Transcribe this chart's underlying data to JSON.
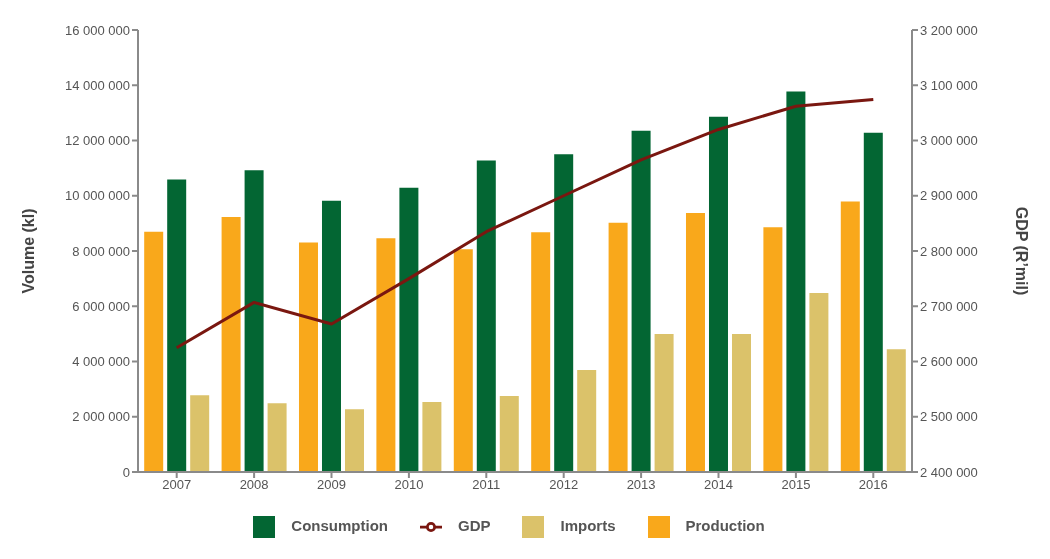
{
  "chart_data": {
    "type": "bar",
    "categories": [
      "2007",
      "2008",
      "2009",
      "2010",
      "2011",
      "2012",
      "2013",
      "2014",
      "2015",
      "2016"
    ],
    "ylabel": "Volume (kl)",
    "y2label": "GDP (R’mil)",
    "ylim": [
      0,
      16000000
    ],
    "yticks": [
      0,
      2000000,
      4000000,
      6000000,
      8000000,
      10000000,
      12000000,
      14000000,
      16000000
    ],
    "y2lim": [
      2400000,
      3200000
    ],
    "y2ticks": [
      2400000,
      2500000,
      2600000,
      2700000,
      2800000,
      2900000,
      3000000,
      3100000,
      3200000
    ],
    "legend": "bottom",
    "series": [
      {
        "name": "Production",
        "color": "#f9a81b",
        "values": [
          8700000,
          9230000,
          8310000,
          8460000,
          8060000,
          8680000,
          9020000,
          9380000,
          8860000,
          9790000
        ]
      },
      {
        "name": "Consumption",
        "color": "#036633",
        "values": [
          10590000,
          10920000,
          9820000,
          10290000,
          11280000,
          11500000,
          12350000,
          12860000,
          13770000,
          12280000
        ]
      },
      {
        "name": "Imports",
        "color": "#dbc26a",
        "values": [
          2780000,
          2490000,
          2270000,
          2530000,
          2750000,
          3690000,
          5000000,
          5000000,
          6480000,
          4440000
        ]
      },
      {
        "name": "GDP",
        "type": "line",
        "axis": "y2",
        "color": "#7a1710",
        "values": [
          2625000,
          2707000,
          2668000,
          2750000,
          2835000,
          2900000,
          2965000,
          3020000,
          3062000,
          3074000
        ]
      }
    ]
  }
}
